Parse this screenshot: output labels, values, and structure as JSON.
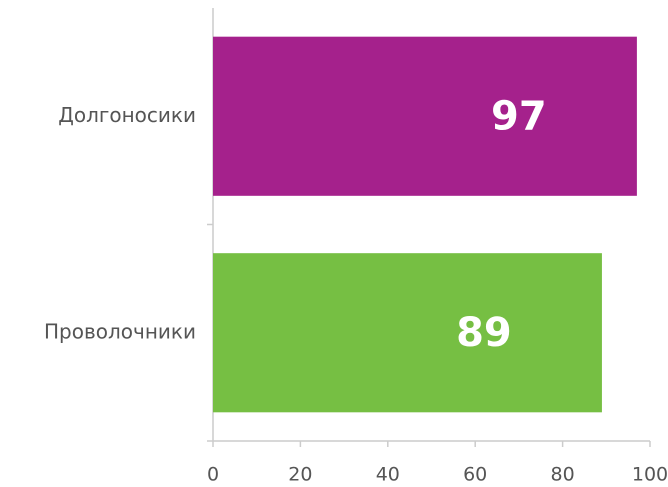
{
  "chart_data": {
    "type": "bar",
    "orientation": "horizontal",
    "categories": [
      "Долгоносики",
      "Проволочники"
    ],
    "values": [
      97,
      89
    ],
    "colors": [
      "#a5218c",
      "#76bf43"
    ],
    "xlim": [
      0,
      100
    ],
    "xticks": [
      0,
      20,
      40,
      60,
      80,
      100
    ],
    "grid": false
  }
}
